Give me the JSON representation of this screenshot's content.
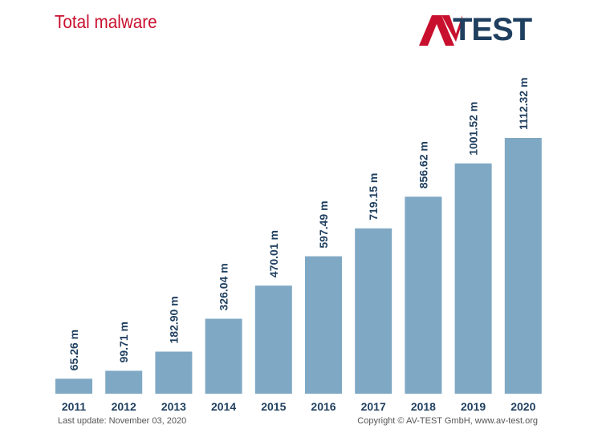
{
  "title": "Total malware",
  "logo": {
    "text": "TEST",
    "accent_color": "#c8102e",
    "text_color": "#1f3f5f"
  },
  "footer": {
    "last_update": "Last update: November 03, 2020",
    "copyright": "Copyright © AV-TEST GmbH, www.av-test.org"
  },
  "chart_data": {
    "type": "bar",
    "title": "Total malware",
    "categories": [
      "2011",
      "2012",
      "2013",
      "2014",
      "2015",
      "2016",
      "2017",
      "2018",
      "2019",
      "2020"
    ],
    "values": [
      65.26,
      99.71,
      182.9,
      326.04,
      470.01,
      597.49,
      719.15,
      856.62,
      1001.52,
      1112.32
    ],
    "value_labels": [
      "65.26 m",
      "99.71 m",
      "182.90 m",
      "326.04 m",
      "470.01 m",
      "597.49 m",
      "719.15 m",
      "856.62 m",
      "1001.52 m",
      "1112.32 m"
    ],
    "unit": "m",
    "xlabel": "",
    "ylabel": "",
    "ylim": [
      0,
      1112.32
    ],
    "grid": false,
    "bar_color": "#7fa8c4",
    "label_color": "#1f3f5f"
  }
}
